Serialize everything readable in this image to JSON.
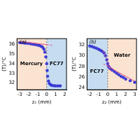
{
  "chart_data": [
    {
      "type": "scatter",
      "x_label": "z₁ (mm)",
      "y_label": "⟨T⟩/°C",
      "xlim": [
        -3.3,
        2.2
      ],
      "xticks": [
        -3,
        -2,
        -1,
        0,
        1,
        2
      ],
      "ylim": [
        31.3,
        36.6
      ],
      "yticks": [
        32,
        33,
        34,
        35,
        36
      ],
      "grid": false,
      "regions": [
        {
          "xmin": -3.3,
          "xmax": 0,
          "color": "#fbe3d2",
          "label": "Mercury",
          "label_x": -1.7,
          "label_y": 34.0
        },
        {
          "xmin": 0,
          "xmax": 2.2,
          "color": "#c6ddf1",
          "label": "FC77",
          "label_x": 1.1,
          "label_y": 34.0
        }
      ],
      "annotations": [
        {
          "text": "(a)",
          "x": -3.0,
          "y": 36.25
        }
      ],
      "series": [
        {
          "type": "scatter",
          "color": "#3a3ad4",
          "marker": "circle",
          "x": [
            -3.0,
            -2.75,
            -2.5,
            -2.25,
            -2.0,
            -1.75,
            -1.5,
            -1.25,
            -1.0,
            -0.8,
            -0.6,
            -0.45,
            -0.3,
            -0.2,
            -0.1,
            0.0,
            0.05,
            0.1,
            0.2,
            0.3,
            0.45,
            0.6,
            0.8,
            1.0,
            1.25,
            1.5
          ],
          "values": [
            36.2,
            36.18,
            36.15,
            36.12,
            36.1,
            36.06,
            36.02,
            35.98,
            35.93,
            35.88,
            35.8,
            35.7,
            35.5,
            35.2,
            34.7,
            34.0,
            33.3,
            32.7,
            32.2,
            31.95,
            31.8,
            31.75,
            31.72,
            31.7,
            31.7,
            31.7
          ]
        },
        {
          "type": "line",
          "color": "#e8557f",
          "line_style": "solid",
          "x": [
            -3.0,
            0.0
          ],
          "values": [
            36.3,
            35.98
          ]
        },
        {
          "type": "line",
          "color": "#e8557f",
          "line_style": "dashed",
          "x": [
            0.0,
            0.7
          ],
          "values": [
            35.98,
            35.9
          ]
        }
      ]
    },
    {
      "type": "scatter",
      "x_label": "z₂ (mm)",
      "y_label": "⟨T⟩/°C",
      "xlim": [
        -2.3,
        3.2
      ],
      "xticks": [
        -2,
        -1,
        0,
        1,
        2,
        3
      ],
      "ylim": [
        23.6,
        33.2
      ],
      "yticks": [
        24,
        26,
        28,
        30,
        32
      ],
      "grid": false,
      "regions": [
        {
          "xmin": -2.3,
          "xmax": 0,
          "color": "#c6ddf1",
          "label": "FC77",
          "label_x": -1.2,
          "label_y": 27.0
        },
        {
          "xmin": 0,
          "xmax": 3.2,
          "color": "#fbe3d2",
          "label": "Water",
          "label_x": 1.6,
          "label_y": 30.0
        }
      ],
      "annotations": [
        {
          "text": "(b)",
          "x": -2.05,
          "y": 32.6
        }
      ],
      "series": [
        {
          "type": "scatter",
          "color": "#3a3ad4",
          "marker": "circle",
          "x": [
            -2.0,
            -1.75,
            -1.5,
            -1.25,
            -1.0,
            -0.8,
            -0.6,
            -0.4,
            -0.25,
            -0.1,
            0.0,
            0.1,
            0.2,
            0.35,
            0.5,
            0.75,
            1.0,
            1.25,
            1.5,
            1.75,
            2.0,
            2.5,
            3.0
          ],
          "values": [
            31.8,
            31.7,
            31.55,
            31.4,
            31.2,
            31.0,
            30.8,
            30.5,
            30.0,
            29.2,
            28.5,
            28.0,
            27.7,
            27.5,
            27.3,
            27.0,
            26.7,
            26.4,
            26.1,
            25.9,
            25.6,
            25.3,
            25.0
          ]
        },
        {
          "type": "line",
          "color": "#e8557f",
          "line_style": "dashed",
          "x": [
            -0.5,
            0.4
          ],
          "values": [
            31.0,
            27.0
          ]
        },
        {
          "type": "line",
          "color": "#e8557f",
          "line_style": "solid",
          "x": [
            0.0,
            3.0
          ],
          "values": [
            28.0,
            25.2
          ]
        },
        {
          "type": "line",
          "color": "#e8557f",
          "line_style": "dashed",
          "x": [
            -0.5,
            0.0
          ],
          "values": [
            28.45,
            28.0
          ]
        }
      ]
    }
  ]
}
